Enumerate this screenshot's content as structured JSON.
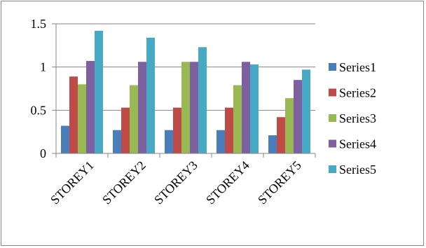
{
  "chart_data": {
    "type": "bar",
    "categories": [
      "STOREY1",
      "STOREY2",
      "STOREY3",
      "STOREY4",
      "STOREY5"
    ],
    "series": [
      {
        "name": "Series1",
        "color": "#4a7ebb",
        "values": [
          0.32,
          0.27,
          0.27,
          0.27,
          0.21
        ]
      },
      {
        "name": "Series2",
        "color": "#be4b48",
        "values": [
          0.89,
          0.53,
          0.53,
          0.53,
          0.42
        ]
      },
      {
        "name": "Series3",
        "color": "#98b954",
        "values": [
          0.8,
          0.79,
          1.06,
          0.79,
          0.64
        ]
      },
      {
        "name": "Series4",
        "color": "#7d60a0",
        "values": [
          1.07,
          1.06,
          1.06,
          1.06,
          0.85
        ]
      },
      {
        "name": "Series5",
        "color": "#46aac5",
        "values": [
          1.42,
          1.34,
          1.23,
          1.03,
          0.97
        ]
      }
    ],
    "ylim": [
      0,
      1.5
    ],
    "yticks": [
      "0",
      "0.5",
      "1",
      "1.5"
    ],
    "grid": true,
    "legend": "right",
    "title": "",
    "xlabel": "",
    "ylabel": ""
  }
}
